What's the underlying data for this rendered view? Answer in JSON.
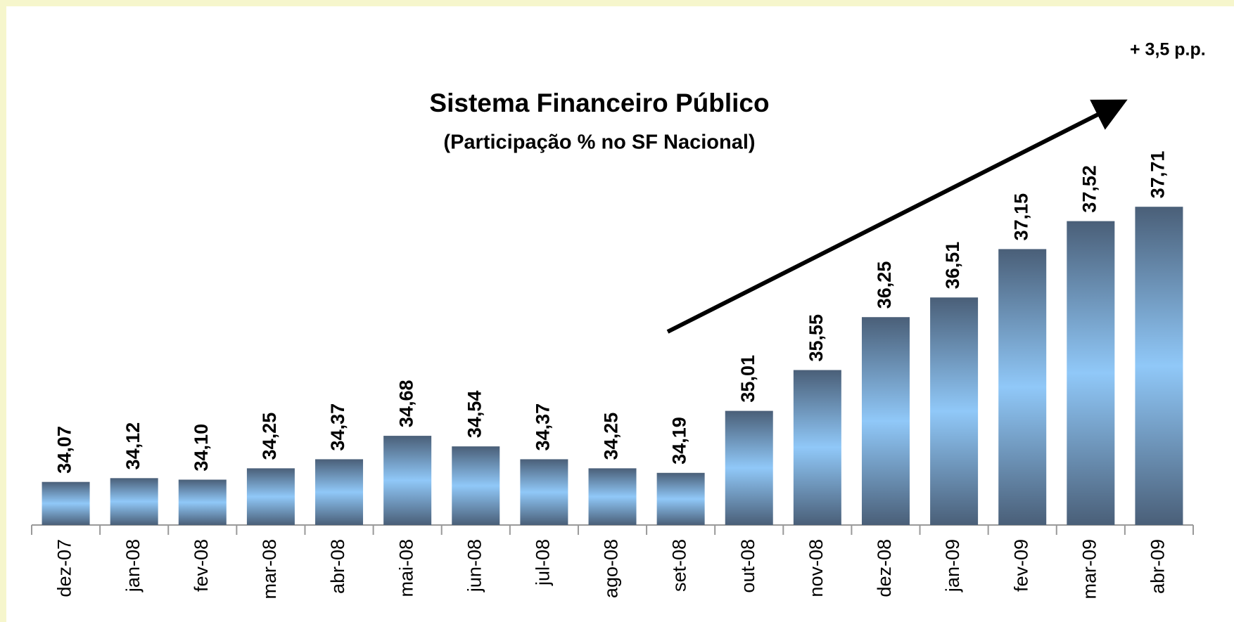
{
  "chart_data": {
    "type": "bar",
    "title": "Sistema Financeiro Público",
    "subtitle": "(Participação % no SF Nacional)",
    "annotation": "+ 3,5 p.p.",
    "categories": [
      "dez-07",
      "jan-08",
      "fev-08",
      "mar-08",
      "abr-08",
      "mai-08",
      "jun-08",
      "jul-08",
      "ago-08",
      "set-08",
      "out-08",
      "nov-08",
      "dez-08",
      "jan-09",
      "fev-09",
      "mar-09",
      "abr-09"
    ],
    "values": [
      34.07,
      34.12,
      34.1,
      34.25,
      34.37,
      34.68,
      34.54,
      34.37,
      34.25,
      34.19,
      35.01,
      35.55,
      36.25,
      36.51,
      37.15,
      37.52,
      37.71
    ],
    "value_labels": [
      "34,07",
      "34,12",
      "34,10",
      "34,25",
      "34,37",
      "34,68",
      "34,54",
      "34,37",
      "34,25",
      "34,19",
      "35,01",
      "35,55",
      "36,25",
      "36,51",
      "37,15",
      "37,52",
      "37,71"
    ],
    "ylim": [
      33.5,
      38.0
    ]
  }
}
